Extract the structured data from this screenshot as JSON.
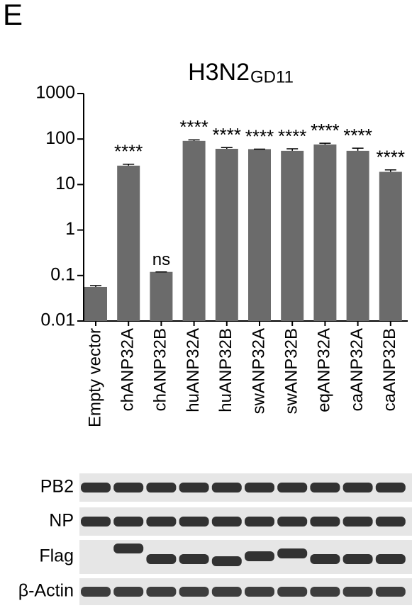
{
  "panel_label": "E",
  "chart_data": {
    "type": "bar",
    "title": "H3N2",
    "title_sub": "GD11",
    "categories": [
      "Empty vector",
      "chANP32A",
      "chANP32B",
      "huANP32A",
      "huANP32B",
      "swANP32A",
      "swANP32B",
      "eqANP32A",
      "caANP32A",
      "caANP32B"
    ],
    "values": [
      0.056,
      26,
      0.12,
      91,
      61,
      60,
      55,
      76,
      55,
      19
    ],
    "errors": [
      0.004,
      2,
      0,
      5,
      4,
      0,
      6,
      5,
      8,
      2
    ],
    "annotations": [
      null,
      "****",
      "ns",
      "****",
      "****",
      "****",
      "****",
      "****",
      "****",
      "****"
    ],
    "color": "#6b6b6b",
    "log_scale": true,
    "ylim": [
      0.01,
      1000
    ],
    "yticks": [
      0.01,
      0.1,
      1,
      10,
      100,
      1000
    ]
  },
  "blot": {
    "rows": [
      "PB2",
      "NP",
      "Flag",
      "β-Actin"
    ]
  }
}
